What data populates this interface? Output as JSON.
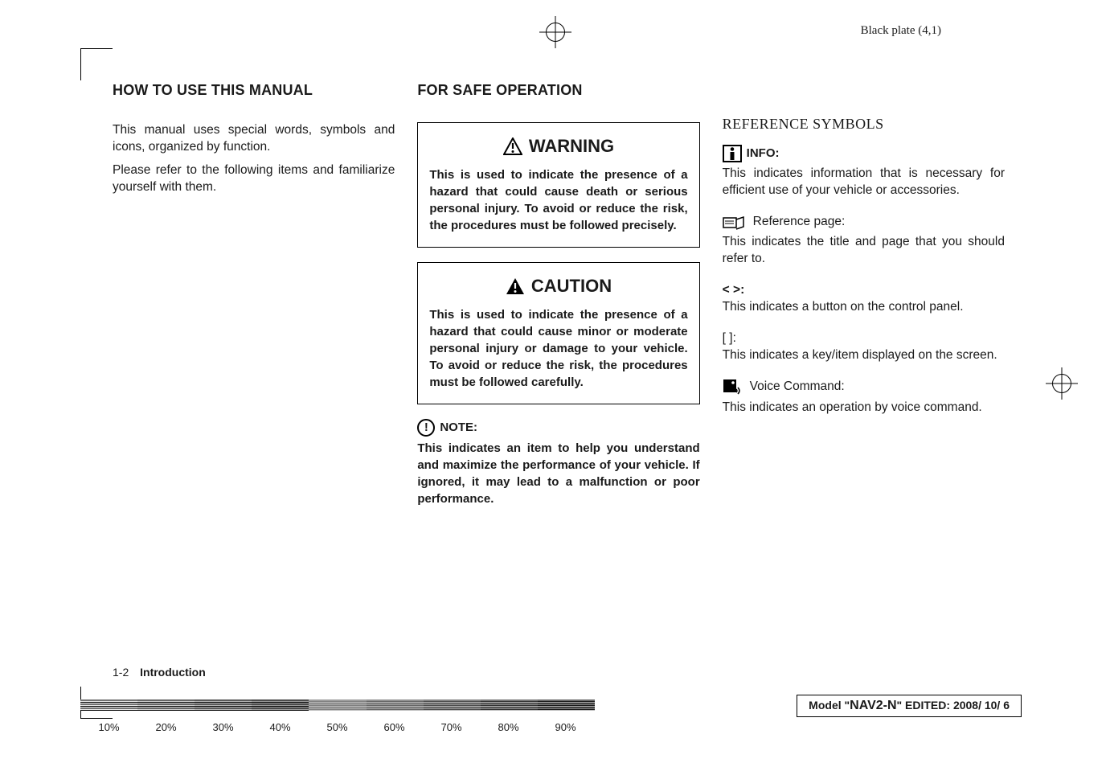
{
  "plate_label": "Black plate (4,1)",
  "col1": {
    "heading": "HOW TO USE THIS MANUAL",
    "p1": "This manual uses special words, symbols and icons, organized by function.",
    "p2": "Please refer to the following items and familiarize yourself with them."
  },
  "col2": {
    "heading": "FOR SAFE OPERATION",
    "warning_title": "WARNING",
    "warning_body": "This is used to indicate the presence of a hazard that could cause death or serious personal injury. To avoid or reduce the risk, the procedures must be followed precisely.",
    "caution_title": "CAUTION",
    "caution_body": "This is used to indicate the presence of a hazard that could cause minor or moderate personal injury or damage to your vehicle. To avoid or reduce the risk, the procedures must be followed carefully.",
    "note_label": "NOTE:",
    "note_body": "This indicates an item to help you understand and maximize the performance of your vehicle. If ignored, it may lead to a malfunction or poor performance."
  },
  "col3": {
    "heading": "REFERENCE SYMBOLS",
    "info_label": "INFO:",
    "info_body": "This indicates information that is necessary for efficient use of your vehicle or accessories.",
    "ref_label": "Reference page:",
    "ref_body": "This indicates the title and page that you should refer to.",
    "angle_head": "< >:",
    "angle_body": "This indicates a button on the control panel.",
    "bracket_head": "[ ]:",
    "bracket_body": "This indicates a key/item displayed on the screen.",
    "voice_label": "Voice Command:",
    "voice_body": "This indicates an operation by voice command."
  },
  "footer": {
    "page": "1-2",
    "section": "Introduction",
    "model_prefix": "Model \"",
    "model_code": "NAV2-N",
    "model_mid": "\"  EDITED:  ",
    "model_date": "2008/ 10/ 6"
  },
  "gradient": {
    "percents": [
      "10%",
      "20%",
      "30%",
      "40%",
      "50%",
      "60%",
      "70%",
      "80%",
      "90%"
    ],
    "shades": [
      "#e6e6e6",
      "#cccccc",
      "#b3b3b3",
      "#999999",
      "#808080",
      "#666666",
      "#4d4d4d",
      "#333333",
      "#1a1a1a"
    ],
    "hatch_light": "#bdbdbd",
    "hatch_dark": "#000000"
  },
  "colors": {
    "text": "#1a1a1a",
    "border": "#000000",
    "bg": "#ffffff"
  }
}
